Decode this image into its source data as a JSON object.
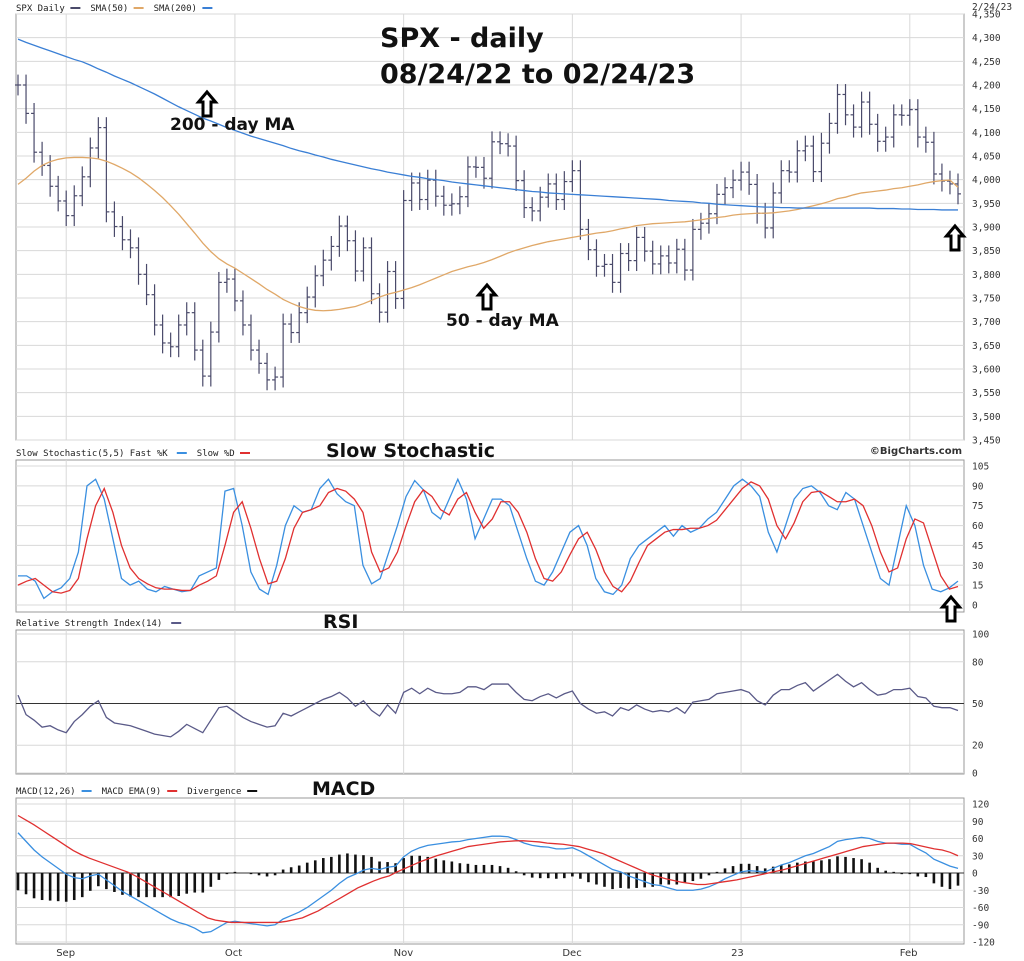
{
  "titles": {
    "main_line1": "SPX - daily",
    "main_line2": "08/24/22 to 02/24/23",
    "stochastic": "Slow Stochastic",
    "rsi": "RSI",
    "macd": "MACD"
  },
  "annotations": {
    "ma200_label": "200 - day MA",
    "ma50_label": "50 - day MA",
    "copyright": "©BigCharts.com"
  },
  "colors": {
    "price_bars": "#4a4a6a",
    "sma50": "#e0a868",
    "sma200": "#3a7fd5",
    "fast_k": "#3a8fe0",
    "slow_d": "#e03030",
    "rsi": "#5a5a88",
    "macd": "#3a8fe0",
    "macd_ema": "#e03030",
    "divergence": "#111111",
    "grid": "#d8d8d8"
  },
  "chart_data": [
    {
      "type": "line",
      "panel": "price",
      "legend": [
        {
          "label": "SPX Daily",
          "color": "#4a4a6a"
        },
        {
          "label": "SMA(50)",
          "color": "#e0a868"
        },
        {
          "label": "SMA(200)",
          "color": "#3a7fd5"
        }
      ],
      "date_label": "2/24/23",
      "ylim": [
        3450,
        4350
      ],
      "y_ticks": [
        "4,350",
        "4,300",
        "4,250",
        "4,200",
        "4,150",
        "4,100",
        "4,050",
        "4,000",
        "3,950",
        "3,900",
        "3,850",
        "3,800",
        "3,750",
        "3,700",
        "3,650",
        "3,600",
        "3,550",
        "3,500",
        "3,450"
      ],
      "x_ticks": [
        "Sep",
        "Oct",
        "Nov",
        "Dec",
        "23",
        "Feb"
      ],
      "closes": [
        4200,
        4140,
        4058,
        4030,
        3986,
        3955,
        3924,
        3966,
        4006,
        4067,
        4110,
        3932,
        3901,
        3873,
        3856,
        3800,
        3757,
        3693,
        3655,
        3647,
        3693,
        3719,
        3640,
        3585,
        3678,
        3783,
        3790,
        3744,
        3693,
        3640,
        3612,
        3577,
        3583,
        3695,
        3677,
        3719,
        3752,
        3797,
        3830,
        3859,
        3902,
        3871,
        3807,
        3856,
        3759,
        3720,
        3806,
        3749,
        3956,
        3993,
        3958,
        3999,
        3965,
        3946,
        3949,
        3964,
        4027,
        4026,
        4003,
        4080,
        4076,
        4071,
        3998,
        3941,
        3934,
        3963,
        3991,
        3958,
        3996,
        4019,
        3895,
        3852,
        3817,
        3821,
        3783,
        3844,
        3829,
        3878,
        3849,
        3822,
        3839,
        3824,
        3853,
        3809,
        3895,
        3908,
        3928,
        3969,
        3983,
        3999,
        4016,
        3990,
        3929,
        3898,
        3972,
        4019,
        4016,
        4061,
        4071,
        4017,
        4077,
        4119,
        4180,
        4137,
        4111,
        4164,
        4117,
        4081,
        4090,
        4137,
        4136,
        4148,
        4090,
        4079,
        4012,
        3997,
        3991,
        3970
      ],
      "sma50": [
        3990,
        4003,
        4018,
        4030,
        4038,
        4043,
        4046,
        4047,
        4047,
        4046,
        4044,
        4039,
        4032,
        4024,
        4015,
        4004,
        3991,
        3977,
        3962,
        3945,
        3927,
        3907,
        3887,
        3866,
        3848,
        3833,
        3822,
        3813,
        3802,
        3791,
        3780,
        3768,
        3758,
        3747,
        3739,
        3732,
        3727,
        3724,
        3723,
        3724,
        3726,
        3729,
        3732,
        3738,
        3745,
        3752,
        3758,
        3762,
        3767,
        3772,
        3778,
        3785,
        3792,
        3799,
        3806,
        3811,
        3816,
        3820,
        3825,
        3831,
        3838,
        3845,
        3851,
        3856,
        3861,
        3865,
        3869,
        3872,
        3875,
        3878,
        3881,
        3884,
        3887,
        3889,
        3892,
        3896,
        3899,
        3903,
        3905,
        3907,
        3908,
        3909,
        3910,
        3911,
        3913,
        3915,
        3918,
        3920,
        3922,
        3925,
        3927,
        3928,
        3929,
        3929,
        3930,
        3932,
        3934,
        3937,
        3941,
        3945,
        3949,
        3954,
        3960,
        3963,
        3968,
        3972,
        3974,
        3976,
        3978,
        3981,
        3983,
        3986,
        3989,
        3993,
        3996,
        3998,
        3999,
        3984
      ],
      "sma200": [
        4297,
        4290,
        4284,
        4278,
        4272,
        4266,
        4260,
        4254,
        4249,
        4242,
        4234,
        4227,
        4219,
        4212,
        4205,
        4197,
        4189,
        4181,
        4172,
        4163,
        4154,
        4146,
        4138,
        4130,
        4124,
        4117,
        4110,
        4104,
        4098,
        4092,
        4087,
        4082,
        4077,
        4072,
        4066,
        4061,
        4057,
        4052,
        4048,
        4043,
        4039,
        4035,
        4031,
        4027,
        4023,
        4020,
        4016,
        4013,
        4010,
        4007,
        4005,
        4002,
        4000,
        3998,
        3995,
        3993,
        3991,
        3989,
        3987,
        3985,
        3983,
        3981,
        3979,
        3977,
        3975,
        3974,
        3972,
        3971,
        3970,
        3969,
        3968,
        3967,
        3966,
        3965,
        3964,
        3963,
        3962,
        3961,
        3960,
        3959,
        3958,
        3956,
        3955,
        3954,
        3953,
        3951,
        3950,
        3948,
        3947,
        3946,
        3945,
        3944,
        3943,
        3942,
        3942,
        3941,
        3941,
        3940,
        3940,
        3940,
        3940,
        3940,
        3940,
        3940,
        3940,
        3940,
        3940,
        3939,
        3939,
        3939,
        3938,
        3938,
        3937,
        3937,
        3937,
        3936,
        3936,
        3936
      ]
    },
    {
      "type": "line",
      "panel": "stochastic",
      "legend": [
        {
          "label": "Slow Stochastic(5,5) Fast %K",
          "color": "#3a8fe0"
        },
        {
          "label": "Slow %D",
          "color": "#e03030"
        }
      ],
      "ylim": [
        0,
        105
      ],
      "y_ticks": [
        "105",
        "90",
        "75",
        "60",
        "45",
        "30",
        "15",
        "0"
      ],
      "series": [
        {
          "name": "Fast %K",
          "values": [
            22,
            22,
            18,
            5,
            10,
            13,
            20,
            40,
            90,
            95,
            80,
            50,
            20,
            15,
            18,
            12,
            10,
            14,
            12,
            10,
            11,
            22,
            25,
            28,
            86,
            88,
            60,
            25,
            12,
            8,
            30,
            60,
            75,
            70,
            72,
            88,
            95,
            84,
            78,
            75,
            30,
            16,
            20,
            40,
            60,
            82,
            94,
            87,
            70,
            65,
            80,
            95,
            80,
            50,
            65,
            80,
            80,
            75,
            55,
            35,
            18,
            15,
            25,
            40,
            55,
            60,
            45,
            20,
            10,
            8,
            15,
            35,
            45,
            50,
            55,
            60,
            52,
            60,
            55,
            58,
            65,
            70,
            80,
            90,
            95,
            90,
            82,
            55,
            40,
            60,
            80,
            88,
            90,
            85,
            75,
            72,
            85,
            80,
            60,
            40,
            20,
            15,
            45,
            75,
            60,
            30,
            12,
            10,
            13,
            18
          ]
        },
        {
          "name": "Slow %D",
          "values": [
            15,
            18,
            20,
            15,
            10,
            9,
            11,
            20,
            50,
            75,
            88,
            70,
            45,
            28,
            20,
            16,
            13,
            12,
            12,
            11,
            11,
            15,
            18,
            22,
            45,
            70,
            78,
            58,
            35,
            16,
            18,
            35,
            58,
            70,
            72,
            75,
            85,
            88,
            86,
            80,
            70,
            40,
            25,
            28,
            40,
            60,
            78,
            87,
            82,
            72,
            68,
            80,
            85,
            70,
            58,
            65,
            78,
            78,
            70,
            55,
            35,
            20,
            18,
            25,
            38,
            50,
            55,
            42,
            25,
            14,
            10,
            18,
            32,
            45,
            50,
            55,
            57,
            57,
            58,
            58,
            60,
            64,
            72,
            80,
            88,
            93,
            90,
            80,
            60,
            50,
            62,
            78,
            85,
            86,
            82,
            78,
            78,
            80,
            75,
            60,
            40,
            25,
            28,
            50,
            65,
            62,
            42,
            22,
            12,
            14
          ]
        }
      ]
    },
    {
      "type": "line",
      "panel": "rsi",
      "legend": [
        {
          "label": "Relative Strength Index(14)",
          "color": "#5a5a88"
        }
      ],
      "ylim": [
        0,
        100
      ],
      "y_ticks": [
        "100",
        "80",
        "50",
        "20",
        "0"
      ],
      "series": [
        {
          "name": "RSI(14)",
          "values": [
            56,
            42,
            38,
            33,
            34,
            31,
            29,
            37,
            42,
            48,
            52,
            40,
            36,
            35,
            34,
            32,
            30,
            28,
            27,
            26,
            30,
            35,
            32,
            29,
            38,
            47,
            48,
            44,
            40,
            37,
            35,
            33,
            34,
            43,
            41,
            44,
            47,
            50,
            53,
            55,
            58,
            54,
            48,
            52,
            45,
            41,
            49,
            43,
            58,
            61,
            57,
            61,
            58,
            57,
            57,
            58,
            62,
            62,
            60,
            64,
            64,
            64,
            58,
            53,
            52,
            55,
            57,
            54,
            57,
            59,
            50,
            46,
            43,
            44,
            41,
            47,
            45,
            49,
            46,
            44,
            45,
            44,
            47,
            43,
            51,
            52,
            53,
            57,
            58,
            59,
            60,
            58,
            52,
            49,
            56,
            60,
            60,
            63,
            65,
            59,
            63,
            67,
            71,
            66,
            62,
            65,
            60,
            56,
            57,
            60,
            60,
            61,
            55,
            54,
            48,
            47,
            47,
            45
          ]
        }
      ]
    },
    {
      "type": "bar",
      "panel": "macd",
      "legend": [
        {
          "label": "MACD(12,26)",
          "color": "#3a8fe0"
        },
        {
          "label": "MACD EMA(9)",
          "color": "#e03030"
        },
        {
          "label": "Divergence",
          "color": "#111111"
        }
      ],
      "ylim": [
        -120,
        120
      ],
      "y_ticks": [
        "120",
        "90",
        "60",
        "30",
        "0",
        "-30",
        "-60",
        "-90",
        "-120"
      ],
      "x_ticks": [
        "Sep",
        "Oct",
        "Nov",
        "Dec",
        "23",
        "Feb"
      ],
      "series": [
        {
          "name": "MACD(12,26)",
          "values": [
            70,
            55,
            40,
            28,
            18,
            8,
            -2,
            -8,
            -10,
            -5,
            -2,
            -12,
            -22,
            -32,
            -40,
            -48,
            -56,
            -64,
            -72,
            -80,
            -86,
            -90,
            -96,
            -104,
            -102,
            -94,
            -86,
            -84,
            -86,
            -88,
            -90,
            -92,
            -90,
            -80,
            -74,
            -68,
            -60,
            -50,
            -40,
            -30,
            -18,
            -8,
            -2,
            5,
            8,
            6,
            10,
            12,
            28,
            38,
            44,
            48,
            50,
            52,
            54,
            55,
            58,
            60,
            62,
            64,
            64,
            63,
            58,
            52,
            48,
            46,
            45,
            42,
            42,
            44,
            38,
            30,
            22,
            14,
            6,
            2,
            -5,
            -10,
            -15,
            -20,
            -22,
            -26,
            -30,
            -30,
            -30,
            -28,
            -24,
            -18,
            -10,
            -4,
            2,
            4,
            3,
            2,
            8,
            14,
            18,
            24,
            30,
            34,
            40,
            46,
            55,
            58,
            60,
            62,
            60,
            55,
            52,
            52,
            50,
            50,
            42,
            35,
            24,
            18,
            12,
            8
          ]
        },
        {
          "name": "MACD EMA(9)",
          "values": [
            100,
            92,
            84,
            75,
            66,
            57,
            48,
            39,
            32,
            26,
            21,
            16,
            11,
            6,
            1,
            -6,
            -14,
            -22,
            -30,
            -38,
            -46,
            -54,
            -62,
            -70,
            -78,
            -82,
            -84,
            -86,
            -86,
            -86,
            -86,
            -86,
            -86,
            -86,
            -84,
            -81,
            -78,
            -72,
            -66,
            -58,
            -50,
            -42,
            -34,
            -26,
            -20,
            -14,
            -9,
            -5,
            2,
            8,
            14,
            20,
            25,
            30,
            34,
            38,
            42,
            46,
            48,
            50,
            52,
            54,
            55,
            56,
            56,
            55,
            54,
            52,
            51,
            50,
            48,
            46,
            42,
            38,
            34,
            28,
            22,
            16,
            10,
            4,
            -2,
            -6,
            -10,
            -13,
            -16,
            -18,
            -20,
            -20,
            -18,
            -16,
            -14,
            -12,
            -9,
            -6,
            -3,
            0,
            3,
            6,
            10,
            14,
            18,
            22,
            26,
            30,
            34,
            38,
            42,
            46,
            48,
            50,
            52,
            52,
            52,
            51,
            48,
            45,
            42,
            40,
            36,
            30
          ]
        },
        {
          "name": "Divergence",
          "values": [
            -30,
            -37,
            -44,
            -47,
            -48,
            -49,
            -50,
            -47,
            -42,
            -31,
            -23,
            -28,
            -33,
            -38,
            -41,
            -42,
            -42,
            -42,
            -42,
            -42,
            -40,
            -36,
            -34,
            -34,
            -24,
            -12,
            -2,
            2,
            0,
            -2,
            -4,
            -6,
            -4,
            6,
            10,
            13,
            18,
            22,
            26,
            28,
            32,
            34,
            32,
            31,
            28,
            20,
            19,
            17,
            26,
            30,
            30,
            28,
            25,
            22,
            20,
            17,
            16,
            14,
            14,
            14,
            12,
            9,
            3,
            -4,
            -8,
            -9,
            -9,
            -10,
            -9,
            -6,
            -10,
            -16,
            -20,
            -24,
            -28,
            -26,
            -27,
            -26,
            -25,
            -24,
            -20,
            -20,
            -20,
            -17,
            -14,
            -10,
            -4,
            2,
            8,
            12,
            16,
            16,
            12,
            8,
            11,
            14,
            15,
            18,
            20,
            20,
            22,
            24,
            29,
            28,
            26,
            24,
            18,
            9,
            4,
            2,
            -2,
            -2,
            -6,
            -7,
            -18,
            -24,
            -28,
            -22
          ]
        }
      ]
    }
  ]
}
